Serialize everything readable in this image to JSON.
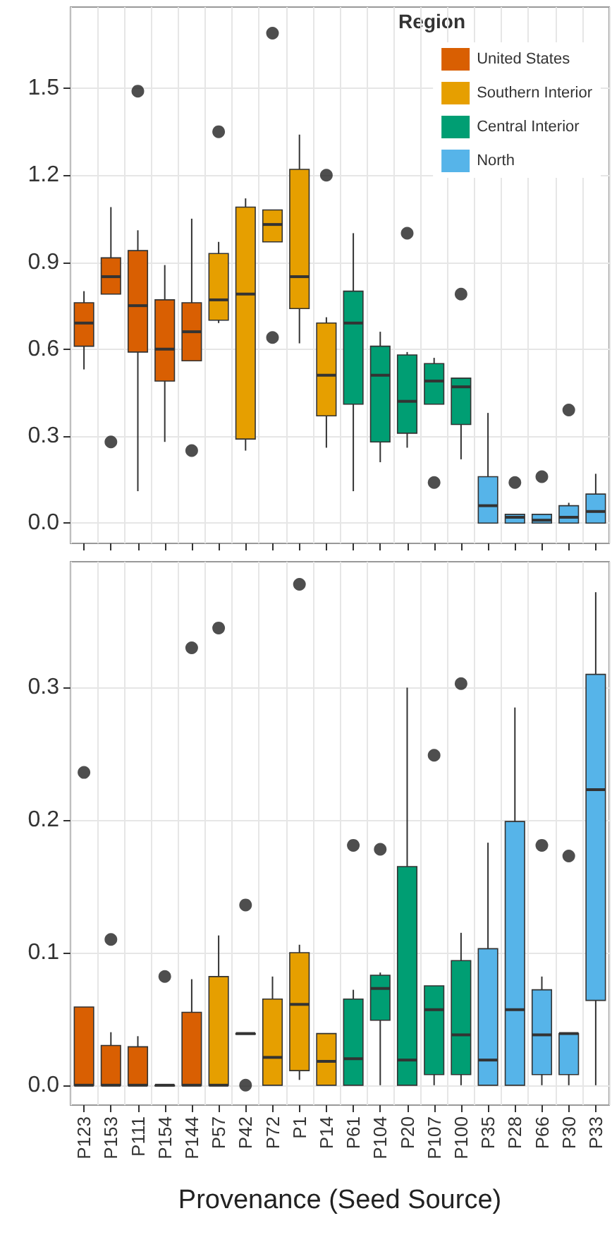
{
  "chart_data": [
    {
      "type": "box",
      "categories": [
        null,
        null,
        null,
        null,
        null,
        null,
        null,
        null,
        null,
        null,
        null,
        null,
        null,
        null,
        null,
        null,
        null,
        null,
        null,
        null
      ],
      "ylim": [
        -0.07,
        1.78
      ],
      "yticks": [
        {
          "value": 0,
          "label": "0.0"
        },
        {
          "value": 0.3,
          "label": "0.3"
        },
        {
          "value": 0.6,
          "label": "0.6"
        },
        {
          "value": 0.9,
          "label": "0.9"
        },
        {
          "value": 1.2,
          "label": "1.2"
        },
        {
          "value": 1.5,
          "label": "1.5"
        }
      ],
      "grid": true,
      "legend": "top right",
      "legend_title": "Region",
      "tick_labels": "y",
      "series": [
        {
          "name": "United States",
          "color": "#d95f02",
          "boxes": [
            {
              "low": 0.53,
              "q1": 0.61,
              "median": 0.69,
              "q3": 0.76,
              "high": 0.8
            },
            {
              "low": 0.79,
              "q1": 0.79,
              "median": 0.85,
              "q3": 0.915,
              "high": 1.09,
              "outliers": [
                0.28
              ]
            },
            {
              "low": 0.11,
              "q1": 0.59,
              "median": 0.75,
              "q3": 0.94,
              "high": 1.01,
              "outliers": [
                1.49
              ]
            },
            {
              "low": 0.28,
              "q1": 0.49,
              "median": 0.6,
              "q3": 0.77,
              "high": 0.89
            },
            {
              "low": 0.56,
              "q1": 0.56,
              "median": 0.66,
              "q3": 0.76,
              "high": 1.05,
              "outliers": [
                0.25
              ]
            },
            null,
            null,
            null,
            null,
            null,
            null,
            null,
            null,
            null,
            null,
            null,
            null,
            null,
            null,
            null
          ]
        },
        {
          "name": "Southern Interior",
          "color": "#e69f00",
          "boxes": [
            null,
            null,
            null,
            null,
            null,
            {
              "low": 0.69,
              "q1": 0.7,
              "median": 0.77,
              "q3": 0.93,
              "high": 0.97,
              "outliers": [
                1.35
              ]
            },
            {
              "low": 0.25,
              "q1": 0.29,
              "median": 0.79,
              "q3": 1.09,
              "high": 1.12
            },
            {
              "low": 0.97,
              "q1": 0.97,
              "median": 1.03,
              "q3": 1.08,
              "high": 1.08,
              "outliers": [
                1.69,
                0.64
              ]
            },
            {
              "low": 0.62,
              "q1": 0.74,
              "median": 0.85,
              "q3": 1.22,
              "high": 1.34
            },
            {
              "low": 0.26,
              "q1": 0.37,
              "median": 0.51,
              "q3": 0.69,
              "high": 0.71,
              "outliers": [
                1.2
              ]
            },
            null,
            null,
            null,
            null,
            null,
            null,
            null,
            null,
            null,
            null
          ]
        },
        {
          "name": "Central Interior",
          "color": "#009e73",
          "boxes": [
            null,
            null,
            null,
            null,
            null,
            null,
            null,
            null,
            null,
            null,
            {
              "low": 0.11,
              "q1": 0.41,
              "median": 0.69,
              "q3": 0.8,
              "high": 1.0
            },
            {
              "low": 0.21,
              "q1": 0.28,
              "median": 0.51,
              "q3": 0.61,
              "high": 0.66
            },
            {
              "low": 0.26,
              "q1": 0.31,
              "median": 0.42,
              "q3": 0.58,
              "high": 0.59,
              "outliers": [
                1.0
              ]
            },
            {
              "low": 0.41,
              "q1": 0.41,
              "median": 0.49,
              "q3": 0.55,
              "high": 0.57,
              "outliers": [
                0.14
              ]
            },
            {
              "low": 0.22,
              "q1": 0.34,
              "median": 0.47,
              "q3": 0.5,
              "high": 0.5,
              "outliers": [
                0.79
              ]
            },
            null,
            null,
            null,
            null,
            null
          ]
        },
        {
          "name": "North",
          "color": "#56b4e9",
          "boxes": [
            null,
            null,
            null,
            null,
            null,
            null,
            null,
            null,
            null,
            null,
            null,
            null,
            null,
            null,
            null,
            {
              "low": 0,
              "q1": 0,
              "median": 0.06,
              "q3": 0.16,
              "high": 0.38
            },
            {
              "low": 0,
              "q1": 0,
              "median": 0.02,
              "q3": 0.03,
              "high": 0.03,
              "outliers": [
                0.14
              ]
            },
            {
              "low": 0,
              "q1": 0,
              "median": 0.01,
              "q3": 0.03,
              "high": 0.03,
              "outliers": [
                0.16
              ]
            },
            {
              "low": 0,
              "q1": 0,
              "median": 0.02,
              "q3": 0.06,
              "high": 0.07,
              "outliers": [
                0.39
              ]
            },
            {
              "low": 0,
              "q1": 0,
              "median": 0.04,
              "q3": 0.1,
              "high": 0.17
            }
          ]
        }
      ]
    },
    {
      "type": "box",
      "categories": [
        "P123",
        "P153",
        "P111",
        "P154",
        "P144",
        "P57",
        "P42",
        "P72",
        "P1",
        "P14",
        "P61",
        "P104",
        "P20",
        "P107",
        "P100",
        "P35",
        "P28",
        "P66",
        "P30",
        "P33"
      ],
      "xlabel": "Provenance (Seed Source)",
      "ylim": [
        -0.015,
        0.395
      ],
      "yticks": [
        {
          "value": 0,
          "label": "0.0"
        },
        {
          "value": 0.1,
          "label": "0.1"
        },
        {
          "value": 0.2,
          "label": "0.2"
        },
        {
          "value": 0.3,
          "label": "0.3"
        }
      ],
      "grid": true,
      "series": [
        {
          "color": "#d95f02",
          "boxes": [
            {
              "low": 0,
              "q1": 0,
              "median": 0,
              "q3": 0.059,
              "high": 0.059,
              "outliers": [
                0.236
              ]
            },
            {
              "low": 0,
              "q1": 0,
              "median": 0,
              "q3": 0.03,
              "high": 0.04,
              "outliers": [
                0.11
              ]
            },
            {
              "low": 0,
              "q1": 0,
              "median": 0,
              "q3": 0.029,
              "high": 0.037
            },
            {
              "low": 0,
              "q1": 0,
              "median": 0,
              "q3": 0,
              "high": 0,
              "outliers": [
                0.082
              ]
            },
            {
              "low": 0,
              "q1": 0,
              "median": 0,
              "q3": 0.055,
              "high": 0.08,
              "outliers": [
                0.33
              ]
            },
            null,
            null,
            null,
            null,
            null,
            null,
            null,
            null,
            null,
            null,
            null,
            null,
            null,
            null,
            null
          ]
        },
        {
          "color": "#e69f00",
          "boxes": [
            null,
            null,
            null,
            null,
            null,
            {
              "low": 0,
              "q1": 0,
              "median": 0,
              "q3": 0.082,
              "high": 0.113,
              "outliers": [
                0.345
              ]
            },
            {
              "low": 0.039,
              "q1": 0.039,
              "median": 0.039,
              "q3": 0.039,
              "high": 0.039,
              "outliers": [
                0.136,
                0
              ]
            },
            {
              "low": 0,
              "q1": 0,
              "median": 0.021,
              "q3": 0.065,
              "high": 0.082
            },
            {
              "low": 0.004,
              "q1": 0.011,
              "median": 0.061,
              "q3": 0.1,
              "high": 0.106,
              "outliers": [
                0.378
              ]
            },
            {
              "low": 0,
              "q1": 0,
              "median": 0.018,
              "q3": 0.039,
              "high": 0.039
            },
            null,
            null,
            null,
            null,
            null,
            null,
            null,
            null,
            null,
            null
          ]
        },
        {
          "color": "#009e73",
          "boxes": [
            null,
            null,
            null,
            null,
            null,
            null,
            null,
            null,
            null,
            null,
            {
              "low": 0,
              "q1": 0,
              "median": 0.02,
              "q3": 0.065,
              "high": 0.072,
              "outliers": [
                0.181
              ]
            },
            {
              "low": 0,
              "q1": 0.049,
              "median": 0.073,
              "q3": 0.083,
              "high": 0.085,
              "outliers": [
                0.178
              ]
            },
            {
              "low": 0,
              "q1": 0,
              "median": 0.019,
              "q3": 0.165,
              "high": 0.3
            },
            {
              "low": 0,
              "q1": 0.008,
              "median": 0.057,
              "q3": 0.075,
              "high": 0.075,
              "outliers": [
                0.249
              ]
            },
            {
              "low": 0,
              "q1": 0.008,
              "median": 0.038,
              "q3": 0.094,
              "high": 0.115,
              "outliers": [
                0.303
              ]
            },
            null,
            null,
            null,
            null,
            null
          ]
        },
        {
          "color": "#56b4e9",
          "boxes": [
            null,
            null,
            null,
            null,
            null,
            null,
            null,
            null,
            null,
            null,
            null,
            null,
            null,
            null,
            null,
            {
              "low": 0,
              "q1": 0,
              "median": 0.019,
              "q3": 0.103,
              "high": 0.183
            },
            {
              "low": 0,
              "q1": 0,
              "median": 0.057,
              "q3": 0.199,
              "high": 0.285
            },
            {
              "low": 0,
              "q1": 0.008,
              "median": 0.038,
              "q3": 0.072,
              "high": 0.082,
              "outliers": [
                0.181
              ]
            },
            {
              "low": 0,
              "q1": 0.008,
              "median": 0.039,
              "q3": 0.039,
              "high": 0.039,
              "outliers": [
                0.173
              ]
            },
            {
              "low": 0,
              "q1": 0.064,
              "median": 0.223,
              "q3": 0.31,
              "high": 0.372
            }
          ]
        }
      ]
    }
  ]
}
